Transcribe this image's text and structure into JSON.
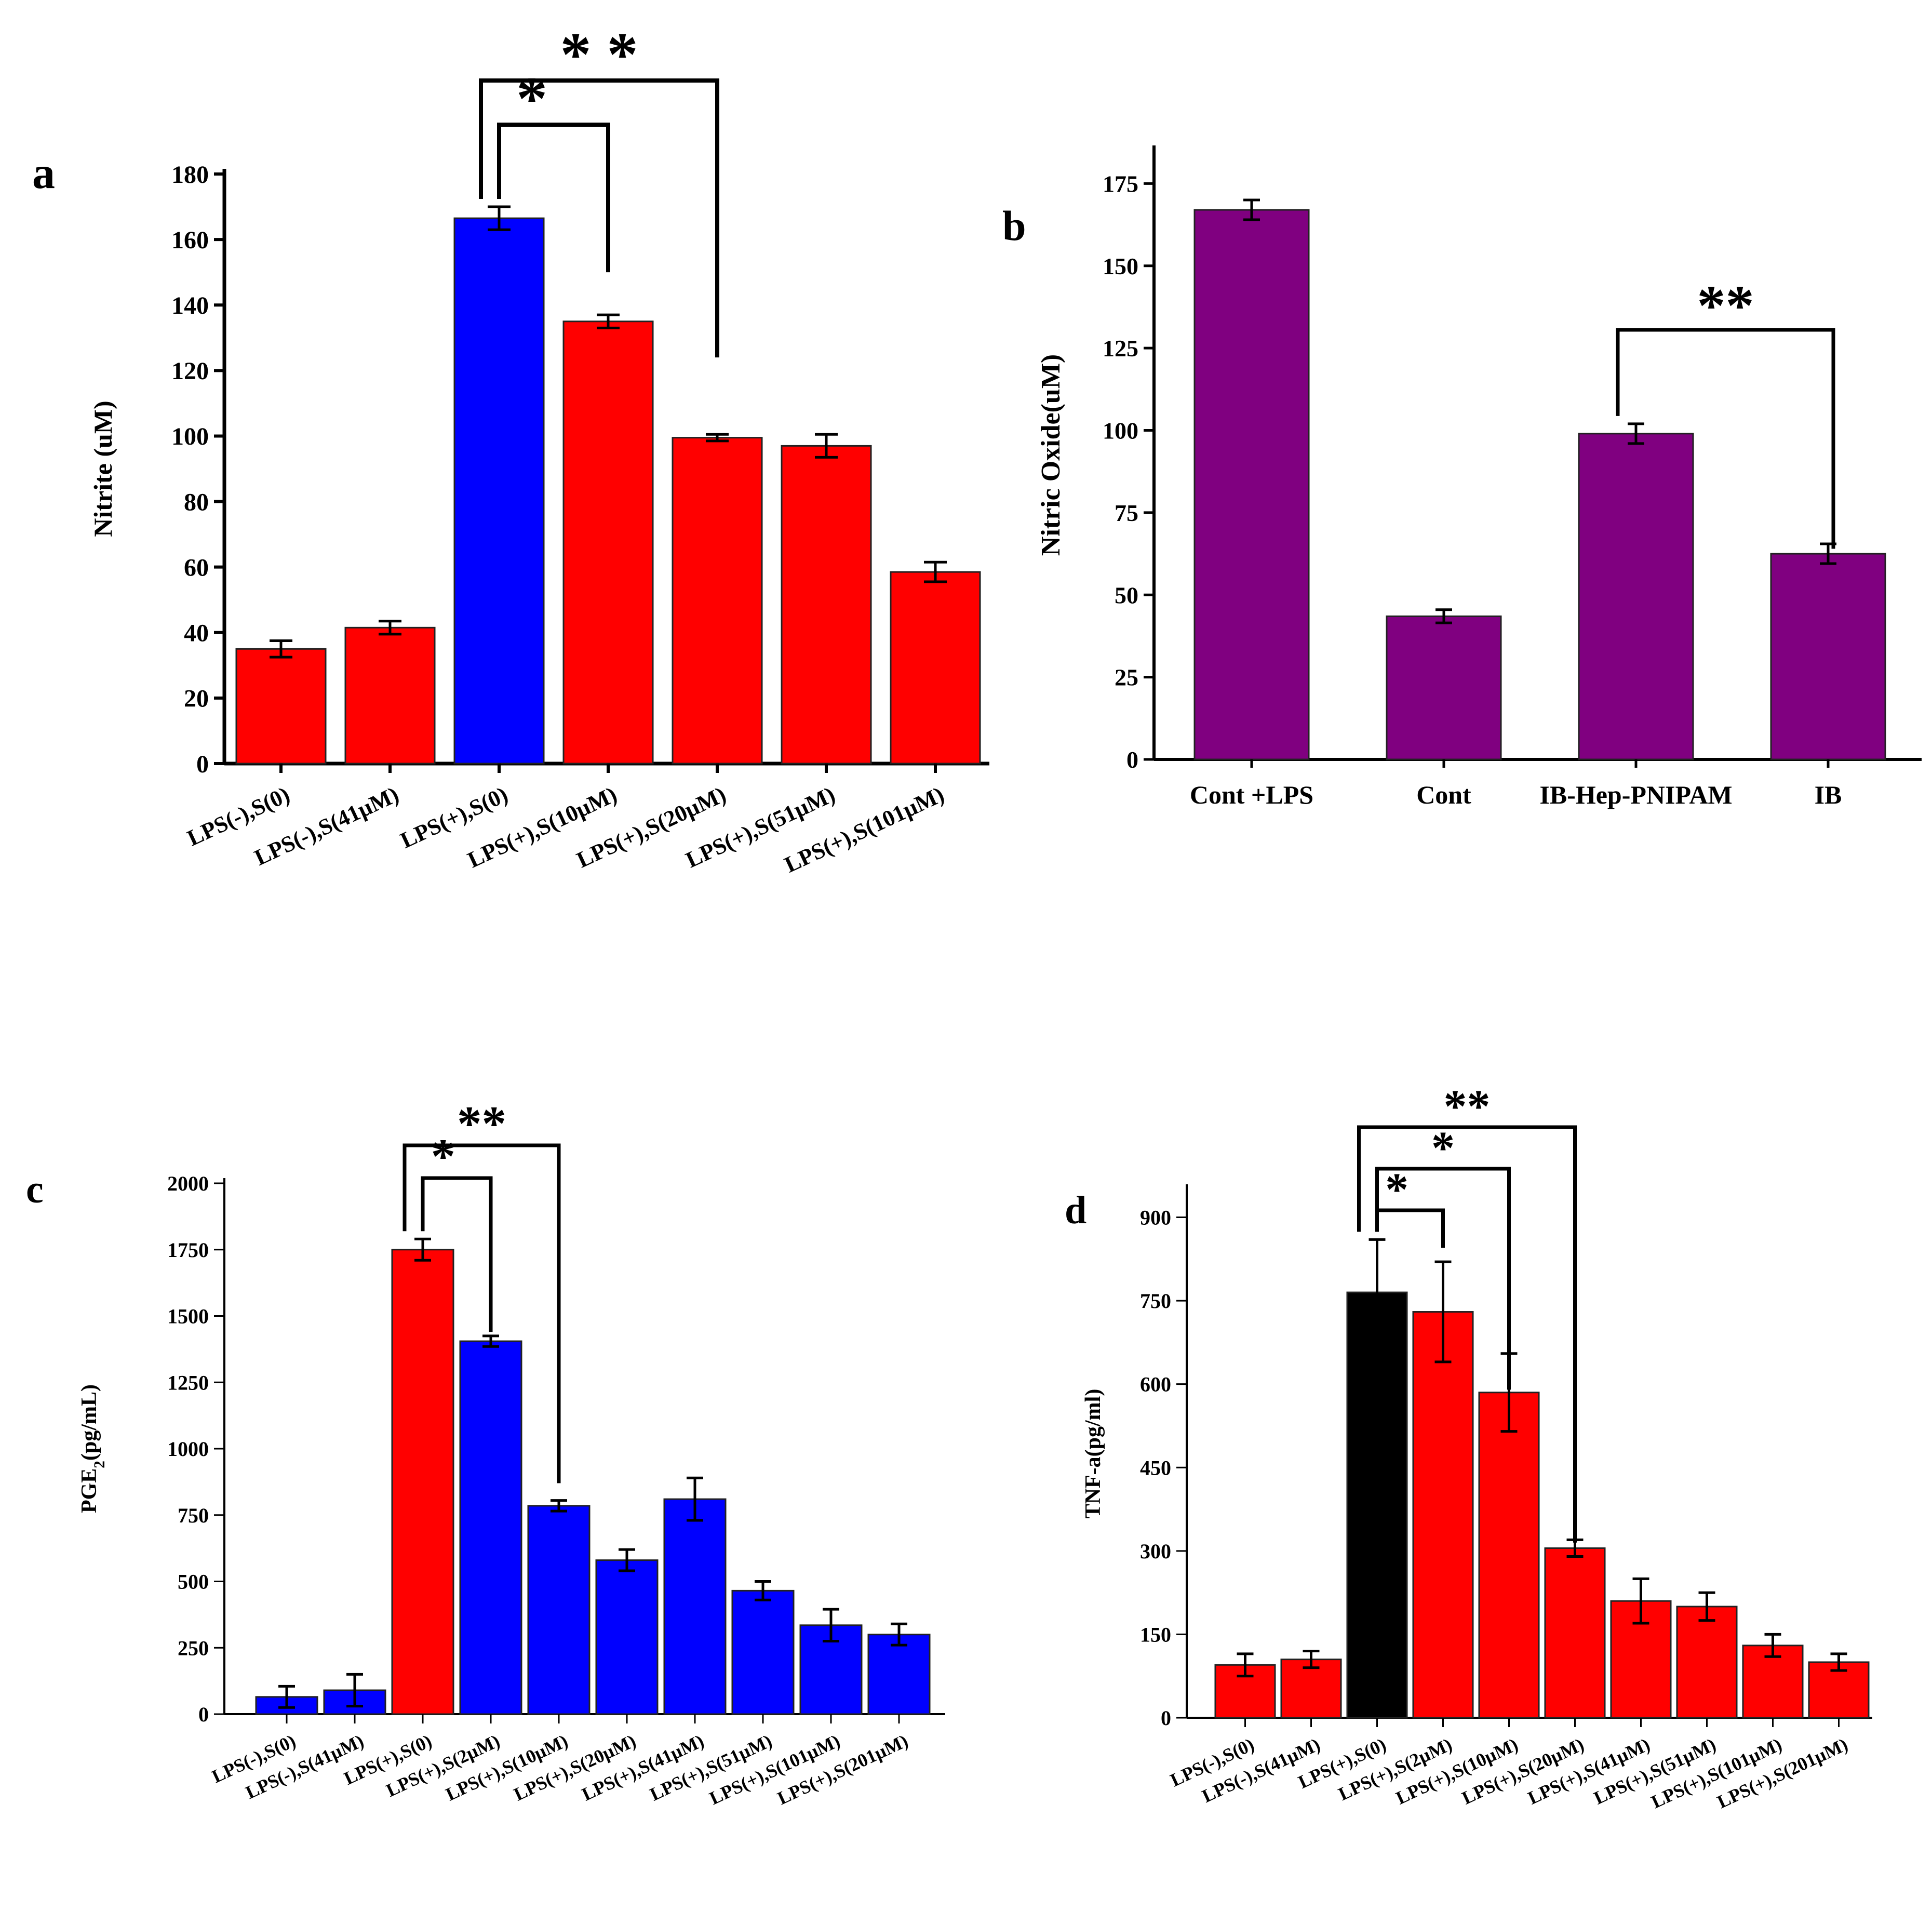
{
  "chart_data": [
    {
      "panel": "a",
      "type": "bar",
      "ylabel": "Nitrite (uM)",
      "ylim": [
        0,
        180
      ],
      "yticks": [
        0,
        20,
        40,
        60,
        80,
        100,
        120,
        140,
        160,
        180
      ],
      "categories": [
        "LPS(-),S(0)",
        "LPS(-),S(41µM)",
        "LPS(+),S(0)",
        "LPS(+),S(10µM)",
        "LPS(+),S(20µM)",
        "LPS(+),S(51µM)",
        "LPS(+),S(101µM)"
      ],
      "values": [
        35,
        41.5,
        166.5,
        135,
        99.5,
        97,
        58.5
      ],
      "errors": [
        2.5,
        2,
        3.5,
        2,
        1,
        3.5,
        3
      ],
      "colors": [
        "#ff0000",
        "#ff0000",
        "#0000ff",
        "#ff0000",
        "#ff0000",
        "#ff0000",
        "#ff0000"
      ],
      "significance": [
        {
          "from": 2,
          "to": 3,
          "label": "*",
          "end_value": 150
        },
        {
          "from": 2,
          "to": 4,
          "label": "* *",
          "end_value": 124
        }
      ]
    },
    {
      "panel": "b",
      "type": "bar",
      "ylabel": "Nitric Oxide(uM)",
      "ylim": [
        0,
        185
      ],
      "yticks": [
        0,
        25,
        50,
        75,
        100,
        125,
        150,
        175
      ],
      "categories": [
        "Cont +LPS",
        "Cont",
        "IB-Hep-PNIPAM",
        "IB"
      ],
      "values": [
        167,
        43.5,
        99,
        62.5
      ],
      "errors": [
        3,
        2,
        3,
        3
      ],
      "colors": [
        "#800080",
        "#800080",
        "#800080",
        "#800080"
      ],
      "significance": [
        {
          "from": 2,
          "to": 3,
          "label": "**",
          "end_value": 64
        }
      ]
    },
    {
      "panel": "c",
      "type": "bar",
      "ylabel": "PGE",
      "ylabel_sub": "2",
      "ylabel_tail": "(pg/mL)",
      "ylim": [
        0,
        2000
      ],
      "yticks": [
        0,
        250,
        500,
        750,
        1000,
        1250,
        1500,
        1750,
        2000
      ],
      "categories": [
        "LPS(-),S(0)",
        "LPS(-),S(41µM)",
        "LPS(+),S(0)",
        "LPS(+),S(2µM)",
        "LPS(+),S(10µM)",
        "LPS(+),S(20µM)",
        "LPS(+),S(41µM)",
        "LPS(+),S(51µM)",
        "LPS(+),S(101µM)",
        "LPS(+),S(201µM)"
      ],
      "values": [
        65,
        90,
        1750,
        1405,
        785,
        580,
        810,
        465,
        335,
        300
      ],
      "errors": [
        40,
        60,
        40,
        20,
        20,
        40,
        80,
        35,
        60,
        40
      ],
      "colors": [
        "#0000ff",
        "#0000ff",
        "#ff0000",
        "#0000ff",
        "#0000ff",
        "#0000ff",
        "#0000ff",
        "#0000ff",
        "#0000ff",
        "#0000ff"
      ],
      "significance": [
        {
          "from": 2,
          "to": 3,
          "label": "*",
          "end_value": 1440
        },
        {
          "from": 2,
          "to": 4,
          "label": "**",
          "end_value": 870
        }
      ]
    },
    {
      "panel": "d",
      "type": "bar",
      "ylabel": "TNF-a(pg/ml)",
      "ylim": [
        0,
        950
      ],
      "yticks": [
        0,
        150,
        300,
        450,
        600,
        750,
        900
      ],
      "categories": [
        "LPS(-),S(0)",
        "LPS(-),S(41µM)",
        "LPS(+),S(0)",
        "LPS(+),S(2µM)",
        "LPS(+),S(10µM)",
        "LPS(+),S(20µM)",
        "LPS(+),S(41µM)",
        "LPS(+),S(51µM)",
        "LPS(+),S(101µM)",
        "LPS(+),S(201µM)"
      ],
      "values": [
        95,
        105,
        765,
        730,
        585,
        305,
        210,
        200,
        130,
        100
      ],
      "errors": [
        20,
        15,
        95,
        90,
        70,
        15,
        40,
        25,
        20,
        15
      ],
      "colors": [
        "#ff0000",
        "#ff0000",
        "#000000",
        "#ff0000",
        "#ff0000",
        "#ff0000",
        "#ff0000",
        "#ff0000",
        "#ff0000",
        "#ff0000"
      ],
      "significance": [
        {
          "from": 2,
          "to": 3,
          "label": "*",
          "end_value": 845
        },
        {
          "from": 2,
          "to": 4,
          "label": "*",
          "end_value": 590
        },
        {
          "from": 2,
          "to": 5,
          "label": "**",
          "end_value": 315
        }
      ]
    }
  ]
}
